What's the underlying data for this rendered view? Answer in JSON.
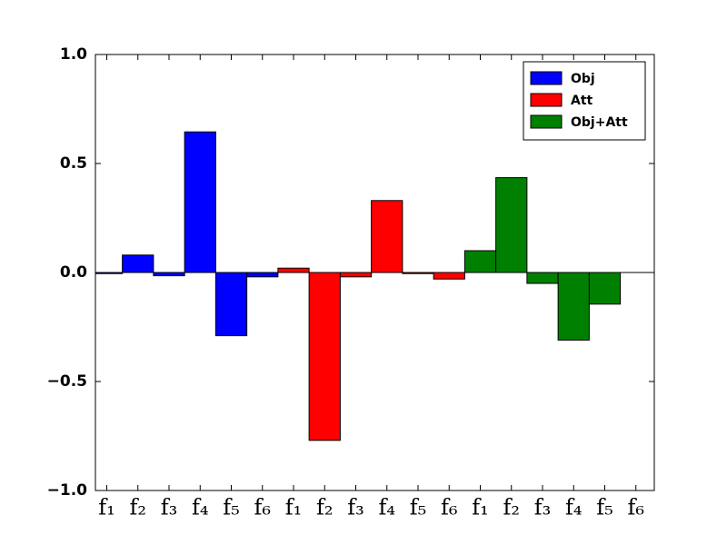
{
  "chart_data": {
    "type": "bar",
    "categories": [
      "f₁",
      "f₂",
      "f₃",
      "f₄",
      "f₅",
      "f₆",
      "f₁",
      "f₂",
      "f₃",
      "f₄",
      "f₅",
      "f₆",
      "f₁",
      "f₂",
      "f₃",
      "f₄",
      "f₅",
      "f₆"
    ],
    "series": [
      {
        "name": "Obj",
        "color": "#0000ff",
        "values": [
          -0.005,
          0.08,
          -0.015,
          0.645,
          -0.29,
          -0.02,
          null,
          null,
          null,
          null,
          null,
          null,
          null,
          null,
          null,
          null,
          null,
          null
        ]
      },
      {
        "name": "Att",
        "color": "#ff0000",
        "values": [
          null,
          null,
          null,
          null,
          null,
          null,
          0.02,
          -0.77,
          -0.02,
          0.33,
          -0.005,
          -0.03,
          null,
          null,
          null,
          null,
          null,
          null
        ]
      },
      {
        "name": "Obj+Att",
        "color": "#008000",
        "values": [
          null,
          null,
          null,
          null,
          null,
          null,
          null,
          null,
          null,
          null,
          null,
          null,
          0.1,
          0.435,
          -0.05,
          -0.31,
          -0.145,
          0
        ]
      }
    ],
    "ylim": [
      -1,
      1
    ],
    "yticks": [
      {
        "value": -1,
        "label": "−1.0"
      },
      {
        "value": -0.5,
        "label": "−0.5"
      },
      {
        "value": 0,
        "label": "0.0"
      },
      {
        "value": 0.5,
        "label": "0.5"
      },
      {
        "value": 1,
        "label": "1.0"
      }
    ],
    "legend": "upper right"
  }
}
